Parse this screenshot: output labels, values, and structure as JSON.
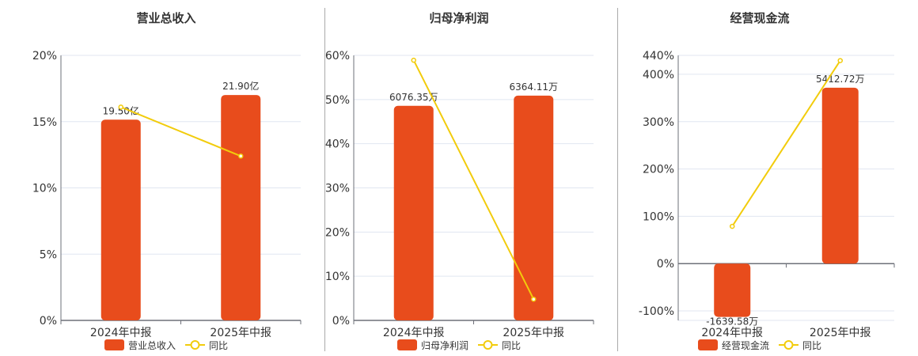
{
  "colors": {
    "bar": "#e84c1c",
    "line": "#f2cc0c",
    "grid": "#e0e6f1",
    "axis": "#6e7079",
    "divider": "#aaaaaa"
  },
  "chart_data": [
    {
      "type": "bar+line",
      "title": "营业总收入",
      "categories": [
        "2024年中报",
        "2025年中报"
      ],
      "bar_series": {
        "name": "营业总收入",
        "values": [
          19.5,
          21.9
        ],
        "labels": [
          "19.50亿",
          "21.90亿"
        ],
        "unit": "亿"
      },
      "line_series": {
        "name": "同比",
        "values": [
          16.1,
          12.4
        ],
        "unit": "%"
      },
      "yaxis": {
        "ticks": [
          "0%",
          "5%",
          "10%",
          "15%",
          "20%"
        ],
        "tick_values": [
          0,
          5,
          10,
          15,
          20
        ],
        "ylim": [
          0,
          20
        ]
      },
      "grid": true,
      "legend": "bottom"
    },
    {
      "type": "bar+line",
      "title": "归母净利润",
      "categories": [
        "2024年中报",
        "2025年中报"
      ],
      "bar_series": {
        "name": "归母净利润",
        "values": [
          6076.35,
          6364.11
        ],
        "labels": [
          "6076.35万",
          "6364.11万"
        ],
        "unit": "万"
      },
      "line_series": {
        "name": "同比",
        "values": [
          58.9,
          4.8
        ],
        "unit": "%"
      },
      "yaxis": {
        "ticks": [
          "0%",
          "10%",
          "20%",
          "30%",
          "40%",
          "50%",
          "60%"
        ],
        "tick_values": [
          0,
          10,
          20,
          30,
          40,
          50,
          60
        ],
        "ylim": [
          0,
          60
        ]
      },
      "grid": true,
      "legend": "bottom"
    },
    {
      "type": "bar+line",
      "title": "经营现金流",
      "categories": [
        "2024年中报",
        "2025年中报"
      ],
      "bar_series": {
        "name": "经营现金流",
        "values": [
          -1639.58,
          5412.72
        ],
        "labels": [
          "-1639.58万",
          "5412.72万"
        ],
        "unit": "万"
      },
      "line_series": {
        "name": "同比",
        "values": [
          78.8,
          429
        ],
        "unit": "%"
      },
      "yaxis": {
        "ticks": [
          "-100%",
          "0%",
          "100%",
          "200%",
          "300%",
          "400%",
          "440%"
        ],
        "tick_values": [
          -100,
          0,
          100,
          200,
          300,
          400,
          440
        ],
        "ylim": [
          -120,
          440
        ]
      },
      "grid": true,
      "legend": "bottom"
    }
  ]
}
